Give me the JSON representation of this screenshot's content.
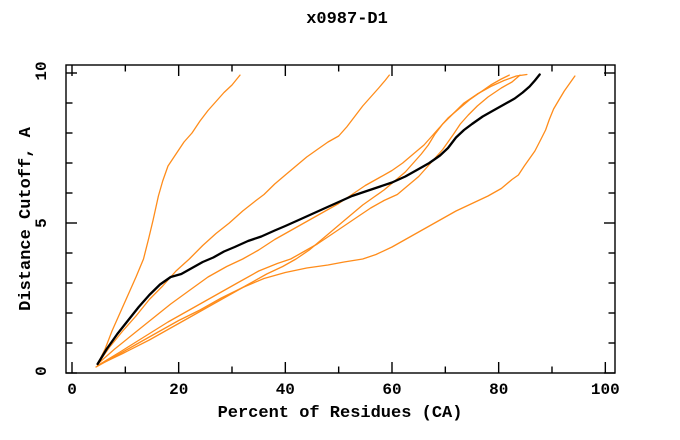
{
  "title": "x0987-D1",
  "colors": {
    "background": "#ffffff",
    "foreground": "#000000",
    "model_curve_orange": "#ff8c1a",
    "highlight_curve_black": "#000000"
  },
  "chart_data": {
    "type": "line",
    "title": "x0987-D1",
    "xlabel": "Percent of Residues (CA)",
    "ylabel": "Distance Cutoff, A",
    "xlim": [
      0,
      100
    ],
    "ylim": [
      0,
      10
    ],
    "grid": false,
    "legend": null,
    "x_axis": {
      "major_ticks": [
        0,
        20,
        40,
        60,
        80,
        100
      ],
      "minor_ticks": [
        10,
        30,
        50,
        70,
        90
      ],
      "labels": [
        "0",
        "20",
        "40",
        "60",
        "80",
        "100"
      ]
    },
    "y_axis": {
      "major_ticks": [
        0,
        5,
        10
      ],
      "minor_ticks": [
        1,
        2,
        3,
        4,
        6,
        7,
        8,
        9
      ],
      "labels": [
        "0",
        "5",
        "10"
      ]
    },
    "series": [
      {
        "id": "orange-1",
        "color": "#ff8c1a",
        "width": 1.3,
        "points": [
          [
            4.8,
            0.3
          ],
          [
            6.2,
            0.8
          ],
          [
            7.5,
            1.4
          ],
          [
            9,
            2.0
          ],
          [
            10.5,
            2.6
          ],
          [
            12,
            3.2
          ],
          [
            13.4,
            3.8
          ],
          [
            14.4,
            4.5
          ],
          [
            15.2,
            5.1
          ],
          [
            16.2,
            5.9
          ],
          [
            17,
            6.4
          ],
          [
            18,
            6.9
          ],
          [
            19.5,
            7.3
          ],
          [
            21,
            7.7
          ],
          [
            22.5,
            8.0
          ],
          [
            24,
            8.4
          ],
          [
            25.5,
            8.75
          ],
          [
            27,
            9.05
          ],
          [
            28.5,
            9.35
          ],
          [
            30,
            9.6
          ],
          [
            31.5,
            9.93
          ]
        ]
      },
      {
        "id": "orange-2",
        "color": "#ff8c1a",
        "width": 1.3,
        "points": [
          [
            4.8,
            0.3
          ],
          [
            7,
            0.85
          ],
          [
            9.5,
            1.4
          ],
          [
            12,
            1.9
          ],
          [
            14.5,
            2.45
          ],
          [
            17,
            2.9
          ],
          [
            19.5,
            3.4
          ],
          [
            22,
            3.8
          ],
          [
            24.5,
            4.25
          ],
          [
            27,
            4.65
          ],
          [
            29.5,
            5.0
          ],
          [
            32,
            5.4
          ],
          [
            34.5,
            5.75
          ],
          [
            36,
            5.95
          ],
          [
            38,
            6.3
          ],
          [
            40,
            6.6
          ],
          [
            42,
            6.9
          ],
          [
            44,
            7.2
          ],
          [
            46,
            7.45
          ],
          [
            48,
            7.7
          ],
          [
            50,
            7.9
          ],
          [
            51.5,
            8.2
          ],
          [
            53,
            8.55
          ],
          [
            54.5,
            8.9
          ],
          [
            56,
            9.2
          ],
          [
            57.5,
            9.5
          ],
          [
            58.7,
            9.75
          ],
          [
            59.5,
            9.93
          ]
        ]
      },
      {
        "id": "orange-3",
        "color": "#ff8c1a",
        "width": 1.3,
        "points": [
          [
            4.8,
            0.3
          ],
          [
            8,
            0.8
          ],
          [
            11.5,
            1.3
          ],
          [
            15,
            1.8
          ],
          [
            18.5,
            2.3
          ],
          [
            22,
            2.75
          ],
          [
            25.5,
            3.2
          ],
          [
            29,
            3.55
          ],
          [
            32,
            3.8
          ],
          [
            35,
            4.1
          ],
          [
            38,
            4.45
          ],
          [
            41,
            4.75
          ],
          [
            44,
            5.05
          ],
          [
            47,
            5.35
          ],
          [
            50,
            5.65
          ],
          [
            52.5,
            5.95
          ],
          [
            55,
            6.25
          ],
          [
            57.5,
            6.5
          ],
          [
            60,
            6.75
          ],
          [
            62,
            7.0
          ],
          [
            64,
            7.3
          ],
          [
            66,
            7.6
          ],
          [
            67.5,
            7.9
          ],
          [
            69,
            8.2
          ],
          [
            70.5,
            8.5
          ],
          [
            72.5,
            8.8
          ],
          [
            74.5,
            9.1
          ],
          [
            76.5,
            9.35
          ],
          [
            78.5,
            9.6
          ],
          [
            80.5,
            9.8
          ],
          [
            82,
            9.93
          ]
        ]
      },
      {
        "id": "orange-4",
        "color": "#ff8c1a",
        "width": 1.3,
        "points": [
          [
            4.8,
            0.25
          ],
          [
            9,
            0.7
          ],
          [
            13.5,
            1.2
          ],
          [
            18,
            1.7
          ],
          [
            22.5,
            2.15
          ],
          [
            27,
            2.6
          ],
          [
            31,
            3.0
          ],
          [
            35,
            3.4
          ],
          [
            38.5,
            3.65
          ],
          [
            41,
            3.8
          ],
          [
            43.5,
            4.05
          ],
          [
            46,
            4.3
          ],
          [
            48.5,
            4.6
          ],
          [
            51,
            4.9
          ],
          [
            53.5,
            5.2
          ],
          [
            56,
            5.5
          ],
          [
            58.5,
            5.75
          ],
          [
            61,
            5.95
          ],
          [
            63,
            6.25
          ],
          [
            65,
            6.55
          ],
          [
            66.5,
            6.85
          ],
          [
            68,
            7.15
          ],
          [
            69.5,
            7.45
          ],
          [
            70.5,
            7.7
          ],
          [
            71.5,
            7.95
          ],
          [
            72.8,
            8.3
          ],
          [
            74.3,
            8.6
          ],
          [
            76,
            8.9
          ],
          [
            78,
            9.2
          ],
          [
            80.5,
            9.5
          ],
          [
            82.5,
            9.7
          ],
          [
            84,
            9.93
          ]
        ]
      },
      {
        "id": "orange-5",
        "color": "#ff8c1a",
        "width": 1.3,
        "points": [
          [
            4.8,
            0.25
          ],
          [
            9.5,
            0.65
          ],
          [
            14.5,
            1.1
          ],
          [
            19.5,
            1.6
          ],
          [
            24,
            2.05
          ],
          [
            28.5,
            2.5
          ],
          [
            33,
            2.95
          ],
          [
            36.5,
            3.3
          ],
          [
            39.5,
            3.55
          ],
          [
            42,
            3.8
          ],
          [
            44.5,
            4.1
          ],
          [
            46.5,
            4.4
          ],
          [
            48.5,
            4.7
          ],
          [
            50.5,
            5.0
          ],
          [
            52.5,
            5.3
          ],
          [
            54.5,
            5.6
          ],
          [
            56.5,
            5.85
          ],
          [
            58.5,
            6.1
          ],
          [
            60.5,
            6.4
          ],
          [
            62.5,
            6.7
          ],
          [
            64,
            7.0
          ],
          [
            65.5,
            7.3
          ],
          [
            66.8,
            7.6
          ],
          [
            68,
            7.95
          ],
          [
            69.5,
            8.3
          ],
          [
            71.5,
            8.65
          ],
          [
            73.5,
            9.0
          ],
          [
            76,
            9.3
          ],
          [
            78.5,
            9.55
          ],
          [
            81,
            9.75
          ],
          [
            83.3,
            9.9
          ],
          [
            85.3,
            9.95
          ]
        ]
      },
      {
        "id": "orange-6",
        "color": "#ff8c1a",
        "width": 1.3,
        "points": [
          [
            4.5,
            0.2
          ],
          [
            8,
            0.55
          ],
          [
            12,
            0.95
          ],
          [
            16,
            1.35
          ],
          [
            20,
            1.75
          ],
          [
            24,
            2.1
          ],
          [
            28,
            2.5
          ],
          [
            32,
            2.85
          ],
          [
            36,
            3.15
          ],
          [
            40,
            3.35
          ],
          [
            44,
            3.5
          ],
          [
            48,
            3.6
          ],
          [
            51,
            3.7
          ],
          [
            54.5,
            3.8
          ],
          [
            57,
            3.95
          ],
          [
            60,
            4.2
          ],
          [
            63,
            4.5
          ],
          [
            66,
            4.8
          ],
          [
            69,
            5.1
          ],
          [
            72,
            5.4
          ],
          [
            75,
            5.65
          ],
          [
            78,
            5.9
          ],
          [
            80.5,
            6.15
          ],
          [
            82.5,
            6.45
          ],
          [
            83.7,
            6.6
          ],
          [
            84.8,
            6.9
          ],
          [
            85.8,
            7.15
          ],
          [
            86.8,
            7.4
          ],
          [
            87.8,
            7.75
          ],
          [
            88.8,
            8.1
          ],
          [
            89.5,
            8.45
          ],
          [
            90.3,
            8.8
          ],
          [
            91.3,
            9.1
          ],
          [
            92.3,
            9.4
          ],
          [
            93.3,
            9.65
          ],
          [
            94.3,
            9.9
          ]
        ]
      },
      {
        "id": "black",
        "color": "#000000",
        "width": 2.3,
        "points": [
          [
            4.8,
            0.3
          ],
          [
            6.5,
            0.8
          ],
          [
            8.5,
            1.3
          ],
          [
            10.5,
            1.75
          ],
          [
            12.5,
            2.2
          ],
          [
            14.5,
            2.6
          ],
          [
            16.5,
            2.95
          ],
          [
            18.5,
            3.2
          ],
          [
            20.5,
            3.3
          ],
          [
            22.5,
            3.5
          ],
          [
            24.5,
            3.7
          ],
          [
            26.5,
            3.85
          ],
          [
            28.5,
            4.05
          ],
          [
            30.5,
            4.2
          ],
          [
            33,
            4.4
          ],
          [
            35.5,
            4.55
          ],
          [
            38,
            4.75
          ],
          [
            40,
            4.9
          ],
          [
            42.5,
            5.1
          ],
          [
            45,
            5.3
          ],
          [
            47.5,
            5.5
          ],
          [
            50,
            5.7
          ],
          [
            52.5,
            5.9
          ],
          [
            55,
            6.05
          ],
          [
            57.5,
            6.2
          ],
          [
            60,
            6.35
          ],
          [
            62.5,
            6.55
          ],
          [
            65,
            6.8
          ],
          [
            67,
            7.0
          ],
          [
            69,
            7.25
          ],
          [
            70.5,
            7.5
          ],
          [
            72,
            7.85
          ],
          [
            73.5,
            8.1
          ],
          [
            75,
            8.3
          ],
          [
            77,
            8.55
          ],
          [
            79,
            8.75
          ],
          [
            81,
            8.95
          ],
          [
            83,
            9.15
          ],
          [
            84.5,
            9.35
          ],
          [
            85.8,
            9.55
          ],
          [
            86.8,
            9.75
          ],
          [
            87.7,
            9.95
          ]
        ]
      }
    ]
  }
}
